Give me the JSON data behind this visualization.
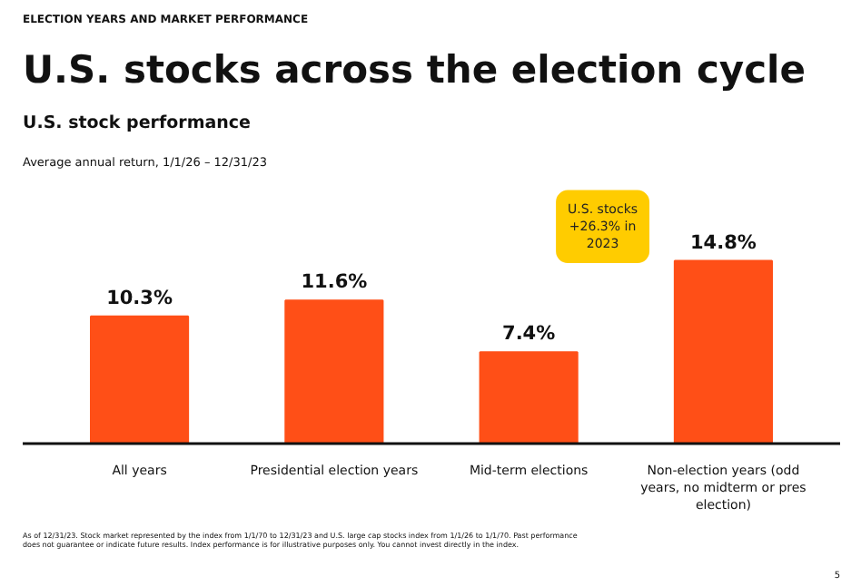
{
  "chart_data": {
    "type": "bar",
    "title": "U.S. stocks across the election cycle",
    "subtitle": "U.S. stock performance",
    "categories": [
      "All years",
      "Presidential election years",
      "Mid-term elections",
      "Non-election years (odd years, no midterm or pres election)"
    ],
    "values": [
      10.3,
      11.6,
      7.4,
      14.8
    ],
    "color": "#ff4f17",
    "data_labels": true,
    "value_labels": [
      "10.3%",
      "11.6%",
      "7.4%",
      "14.8%"
    ],
    "annotations": [
      "ELECTION YEARS AND MARKET PERFORMANCE",
      "Average annual return, 1/1/26 – 12/31/23",
      "U.S. stocks +26.3% in 2023",
      "As of 12/31/23. Stock market represented by the index from 1/1/70 to 12/31/23 and U.S. large cap stocks index from 1/1/26 to 1/1/70. Past performance does not guarantee or indicate future results. Index performance is for illustrative purposes only. You cannot invest directly in the index.",
      "5"
    ],
    "grid": false
  }
}
